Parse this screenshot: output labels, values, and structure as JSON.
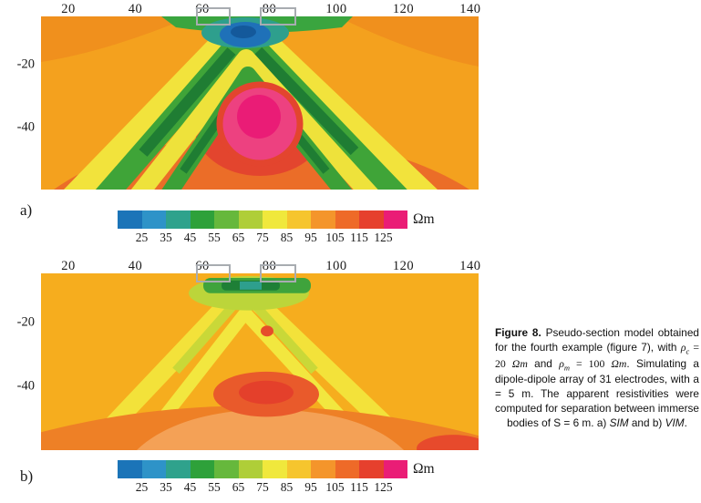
{
  "axis": {
    "x_ticks": [
      "20",
      "40",
      "60",
      "80",
      "100",
      "120",
      "140"
    ],
    "y_ticks": [
      "-20",
      "-40"
    ]
  },
  "panels": [
    {
      "id": "a",
      "label": "a)"
    },
    {
      "id": "b",
      "label": "b)"
    }
  ],
  "colorbar": {
    "ticks": [
      "25",
      "35",
      "45",
      "55",
      "65",
      "75",
      "85",
      "95",
      "105",
      "115",
      "125"
    ],
    "unit": "Ωm",
    "colors": [
      "#1b74b8",
      "#2e93c8",
      "#2fa28c",
      "#2ea13a",
      "#66b83c",
      "#afce38",
      "#f0e83c",
      "#f6c52e",
      "#f4952b",
      "#ee6a28",
      "#e6402d",
      "#ea1d76"
    ]
  },
  "caption": {
    "parts": [
      {
        "t": "Figure 8.",
        "s": "b"
      },
      {
        "t": " Pseudo-section model obtained for the fourth example (figure 7), with ",
        "s": ""
      },
      {
        "t": "ρ",
        "s": "i ser"
      },
      {
        "t": "c",
        "s": "i ser sub"
      },
      {
        "t": " = 20 ",
        "s": "ser"
      },
      {
        "t": "Ωm",
        "s": "i ser"
      },
      {
        "t": " and ",
        "s": ""
      },
      {
        "t": "ρ",
        "s": "i ser"
      },
      {
        "t": "m",
        "s": "i ser sub"
      },
      {
        "t": " = 100 ",
        "s": "ser"
      },
      {
        "t": "Ωm",
        "s": "i ser"
      },
      {
        "t": ". Simulating a dipole-dipole array of 31 electrodes, with a = 5 m. The apparent resistivities were computed for separation between immerse bodies of S = 6 m. a) ",
        "s": ""
      },
      {
        "t": "SIM",
        "s": "i"
      },
      {
        "t": " and b) ",
        "s": ""
      },
      {
        "t": "VIM",
        "s": "i"
      },
      {
        "t": ".",
        "s": ""
      }
    ]
  },
  "chart_data": [
    {
      "type": "heatmap",
      "title": "a) SIM pseudo-section",
      "x_ticks": [
        20,
        40,
        60,
        80,
        100,
        120,
        140
      ],
      "y_ticks": [
        -20,
        -40
      ],
      "colorbar": {
        "values": [
          25,
          35,
          45,
          55,
          65,
          75,
          85,
          95,
          105,
          115,
          125
        ],
        "unit": "Ωm"
      },
      "body_markers_x": [
        [
          57,
          67
        ],
        [
          77,
          87
        ]
      ],
      "x": [
        20,
        30,
        40,
        50,
        60,
        70,
        80,
        90,
        100,
        110,
        120,
        130,
        140
      ],
      "depths": [
        -5,
        -15,
        -25,
        -35,
        -45
      ],
      "apparent_resistivity": [
        [
          95,
          95,
          90,
          75,
          45,
          25,
          45,
          75,
          90,
          95,
          95,
          95,
          95
        ],
        [
          95,
          90,
          75,
          65,
          85,
          115,
          125,
          115,
          85,
          65,
          75,
          90,
          95
        ],
        [
          100,
          95,
          75,
          65,
          85,
          115,
          125,
          115,
          85,
          65,
          75,
          95,
          100
        ],
        [
          105,
          95,
          85,
          65,
          75,
          95,
          115,
          95,
          75,
          65,
          85,
          95,
          105
        ],
        [
          105,
          105,
          95,
          85,
          75,
          85,
          105,
          85,
          75,
          85,
          95,
          105,
          105
        ]
      ]
    },
    {
      "type": "heatmap",
      "title": "b) VIM pseudo-section",
      "x_ticks": [
        20,
        40,
        60,
        80,
        100,
        120,
        140
      ],
      "y_ticks": [
        -20,
        -40
      ],
      "colorbar": {
        "values": [
          25,
          35,
          45,
          55,
          65,
          75,
          85,
          95,
          105,
          115,
          125
        ],
        "unit": "Ωm"
      },
      "body_markers_x": [
        [
          57,
          67
        ],
        [
          77,
          87
        ]
      ],
      "x": [
        20,
        30,
        40,
        50,
        60,
        70,
        80,
        90,
        100,
        110,
        120,
        130,
        140
      ],
      "depths": [
        -5,
        -15,
        -25,
        -35,
        -45
      ],
      "apparent_resistivity": [
        [
          95,
          95,
          95,
          90,
          65,
          45,
          65,
          90,
          95,
          95,
          95,
          95,
          95
        ],
        [
          95,
          95,
          90,
          85,
          90,
          100,
          95,
          90,
          85,
          90,
          95,
          95,
          95
        ],
        [
          95,
          95,
          90,
          85,
          95,
          110,
          115,
          110,
          95,
          85,
          90,
          95,
          95
        ],
        [
          100,
          95,
          90,
          85,
          95,
          110,
          115,
          110,
          95,
          85,
          90,
          95,
          100
        ],
        [
          100,
          100,
          95,
          90,
          95,
          100,
          105,
          100,
          95,
          90,
          95,
          100,
          100
        ]
      ]
    }
  ]
}
